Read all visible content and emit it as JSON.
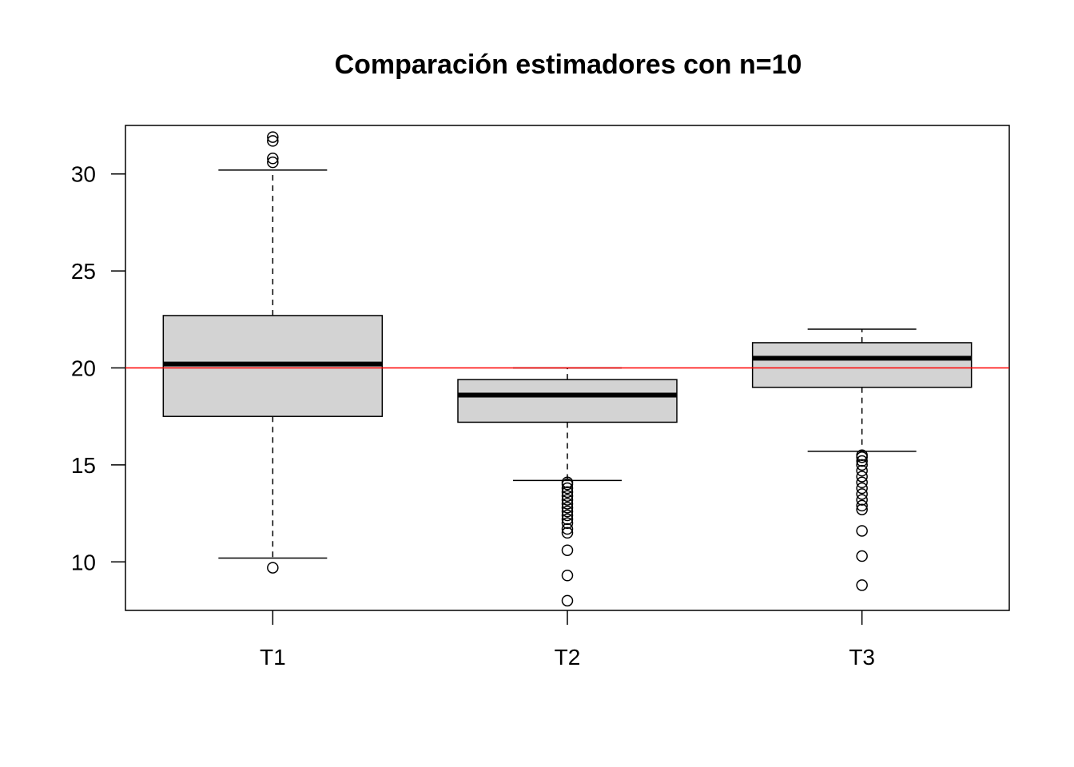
{
  "chart_data": {
    "type": "boxplot",
    "title": "Comparación estimadores con n=10",
    "xlabel": "",
    "ylabel": "",
    "categories": [
      "T1",
      "T2",
      "T3"
    ],
    "ylim": [
      7.5,
      32.5
    ],
    "y_ticks": [
      10,
      15,
      20,
      25,
      30
    ],
    "grid": false,
    "legend": "none",
    "reference_line": {
      "y": 20,
      "color": "#ff0000"
    },
    "box_fill": "#d3d3d3",
    "boxes": [
      {
        "name": "T1",
        "whisker_low": 10.2,
        "q1": 17.5,
        "median": 20.2,
        "q3": 22.7,
        "whisker_high": 30.2,
        "outliers": [
          9.7,
          30.6,
          30.8,
          31.7,
          31.9
        ]
      },
      {
        "name": "T2",
        "whisker_low": 14.2,
        "q1": 17.2,
        "median": 18.6,
        "q3": 19.4,
        "whisker_high": 20.0,
        "outliers": [
          8.0,
          9.3,
          10.6,
          11.5,
          11.7,
          12.0,
          12.2,
          12.4,
          12.6,
          12.8,
          13.0,
          13.2,
          13.4,
          13.6,
          13.8,
          14.0,
          14.1
        ]
      },
      {
        "name": "T3",
        "whisker_low": 15.7,
        "q1": 19.0,
        "median": 20.5,
        "q3": 21.3,
        "whisker_high": 22.0,
        "outliers": [
          8.8,
          10.3,
          11.6,
          12.7,
          12.9,
          13.2,
          13.5,
          13.8,
          14.1,
          14.4,
          14.7,
          15.0,
          15.2,
          15.4,
          15.5
        ]
      }
    ]
  }
}
